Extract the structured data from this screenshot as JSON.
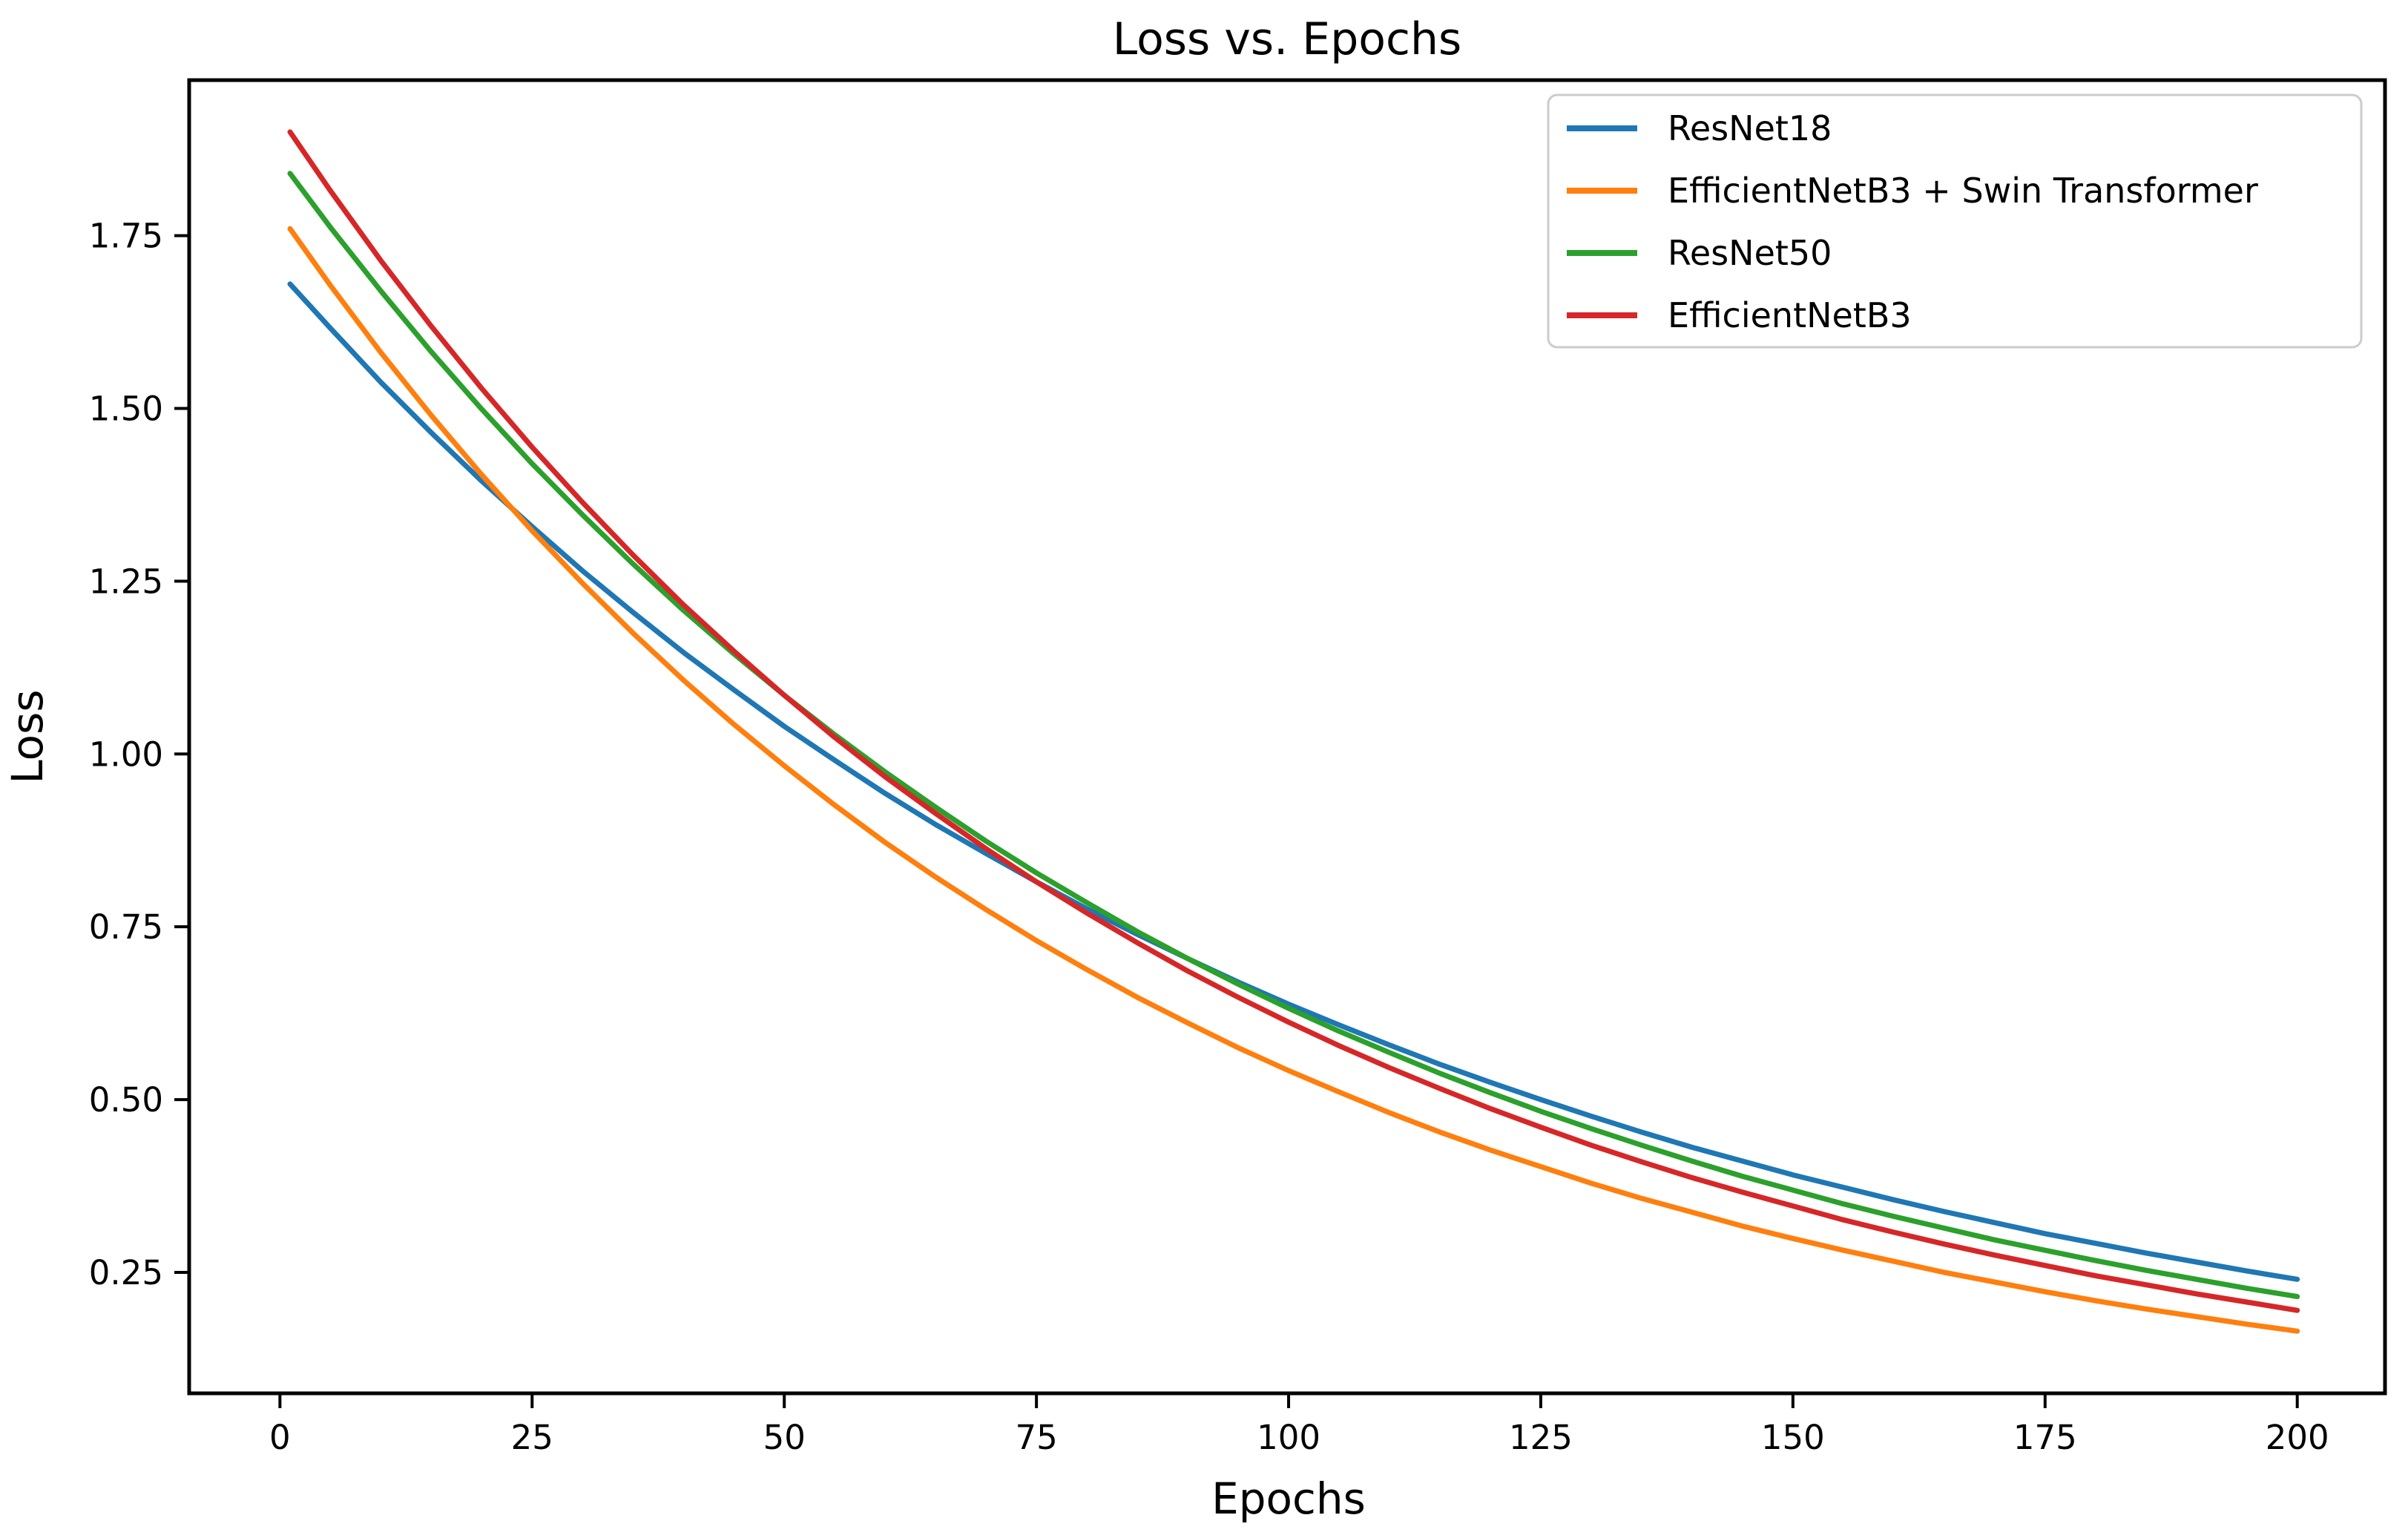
{
  "page": {
    "background": "#ffffff"
  },
  "chart_data": {
    "type": "line",
    "title": "Loss vs. Epochs",
    "xlabel": "Epochs",
    "ylabel": "Loss",
    "xlim": [
      -9,
      208.7
    ],
    "ylim": [
      0.075,
      1.975
    ],
    "x_ticks": [
      0,
      25,
      50,
      75,
      100,
      125,
      150,
      175,
      200
    ],
    "x_tick_labels": [
      "0",
      "25",
      "50",
      "75",
      "100",
      "125",
      "150",
      "175",
      "200"
    ],
    "y_ticks": [
      0.25,
      0.5,
      0.75,
      1.0,
      1.25,
      1.5,
      1.75
    ],
    "y_tick_labels": [
      "0.25",
      "0.50",
      "0.75",
      "1.00",
      "1.25",
      "1.50",
      "1.75"
    ],
    "grid": false,
    "axis_color": "#000000",
    "legend": {
      "position": "upper right",
      "entries": [
        "ResNet18",
        "EfficientNetB3 + Swin Transformer",
        "ResNet50",
        "EfficientNetB3"
      ]
    },
    "x": [
      1,
      5,
      10,
      15,
      20,
      25,
      30,
      35,
      40,
      45,
      50,
      55,
      60,
      65,
      70,
      75,
      80,
      85,
      90,
      95,
      100,
      105,
      110,
      115,
      120,
      125,
      130,
      135,
      140,
      145,
      150,
      155,
      160,
      165,
      170,
      175,
      180,
      185,
      190,
      195,
      200
    ],
    "series": [
      {
        "name": "ResNet18",
        "color": "#1f77b4",
        "values": [
          1.68,
          1.616,
          1.538,
          1.465,
          1.395,
          1.329,
          1.265,
          1.205,
          1.147,
          1.093,
          1.04,
          0.991,
          0.943,
          0.898,
          0.856,
          0.815,
          0.776,
          0.739,
          0.704,
          0.67,
          0.638,
          0.608,
          0.579,
          0.551,
          0.525,
          0.5,
          0.476,
          0.453,
          0.431,
          0.411,
          0.391,
          0.373,
          0.355,
          0.338,
          0.322,
          0.306,
          0.292,
          0.278,
          0.265,
          0.252,
          0.24
        ]
      },
      {
        "name": "EfficientNetB3 + Swin Transformer",
        "color": "#ff7f0e",
        "values": [
          1.76,
          1.678,
          1.581,
          1.49,
          1.404,
          1.323,
          1.247,
          1.175,
          1.107,
          1.043,
          0.983,
          0.926,
          0.872,
          0.822,
          0.775,
          0.73,
          0.688,
          0.648,
          0.611,
          0.575,
          0.542,
          0.511,
          0.481,
          0.453,
          0.427,
          0.403,
          0.379,
          0.357,
          0.337,
          0.317,
          0.299,
          0.282,
          0.266,
          0.25,
          0.236,
          0.222,
          0.209,
          0.197,
          0.186,
          0.175,
          0.165
        ]
      },
      {
        "name": "ResNet50",
        "color": "#2ca02c",
        "values": [
          1.84,
          1.762,
          1.67,
          1.582,
          1.499,
          1.42,
          1.346,
          1.275,
          1.208,
          1.145,
          1.085,
          1.028,
          0.974,
          0.923,
          0.874,
          0.828,
          0.785,
          0.743,
          0.704,
          0.667,
          0.632,
          0.599,
          0.568,
          0.538,
          0.51,
          0.483,
          0.458,
          0.434,
          0.411,
          0.389,
          0.369,
          0.349,
          0.331,
          0.314,
          0.297,
          0.282,
          0.267,
          0.253,
          0.24,
          0.227,
          0.215
        ]
      },
      {
        "name": "EfficientNetB3",
        "color": "#d62728",
        "values": [
          1.9,
          1.815,
          1.714,
          1.619,
          1.529,
          1.444,
          1.364,
          1.288,
          1.216,
          1.149,
          1.085,
          1.024,
          0.967,
          0.914,
          0.863,
          0.815,
          0.77,
          0.727,
          0.686,
          0.648,
          0.612,
          0.578,
          0.546,
          0.516,
          0.487,
          0.46,
          0.434,
          0.41,
          0.387,
          0.366,
          0.346,
          0.326,
          0.308,
          0.291,
          0.275,
          0.26,
          0.245,
          0.232,
          0.219,
          0.207,
          0.195
        ]
      }
    ]
  }
}
